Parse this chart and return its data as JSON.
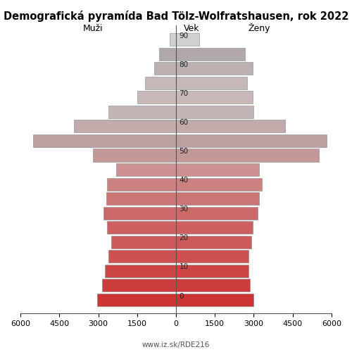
{
  "title": "Demografická pyramída Bad Tölz-Wolfratshausen, rok 2022",
  "label_males": "Muži",
  "label_females": "Ženy",
  "label_age": "Vek",
  "watermark": "www.iz.sk/RDE216",
  "age_groups": [
    0,
    5,
    10,
    15,
    20,
    25,
    30,
    35,
    40,
    45,
    50,
    55,
    60,
    65,
    70,
    75,
    80,
    85,
    90
  ],
  "males": [
    3050,
    2850,
    2750,
    2600,
    2500,
    2650,
    2800,
    2700,
    2650,
    2300,
    3200,
    5500,
    3950,
    2600,
    1500,
    1200,
    850,
    650,
    250
  ],
  "females": [
    3000,
    2850,
    2800,
    2800,
    2900,
    2950,
    3150,
    3200,
    3300,
    3200,
    5500,
    5800,
    4200,
    3000,
    2950,
    2750,
    2950,
    2650,
    900
  ],
  "xlim": 6000,
  "background_color": "#ffffff",
  "bar_colors": [
    "#cc3333",
    "#cc3c3c",
    "#cc4545",
    "#cc5050",
    "#cc5858",
    "#cc6060",
    "#cc6a6a",
    "#cc7575",
    "#cc8080",
    "#cc9090",
    "#c49898",
    "#bca0a0",
    "#c0aaaa",
    "#c4b4b4",
    "#c8b8b8",
    "#c4b8b8",
    "#bcb0b0",
    "#b0a8a8",
    "#d0d0d0"
  ],
  "ytick_labels": [
    0,
    10,
    20,
    30,
    40,
    50,
    60,
    70,
    80,
    90
  ],
  "figsize": [
    5.0,
    5.0
  ],
  "dpi": 100
}
